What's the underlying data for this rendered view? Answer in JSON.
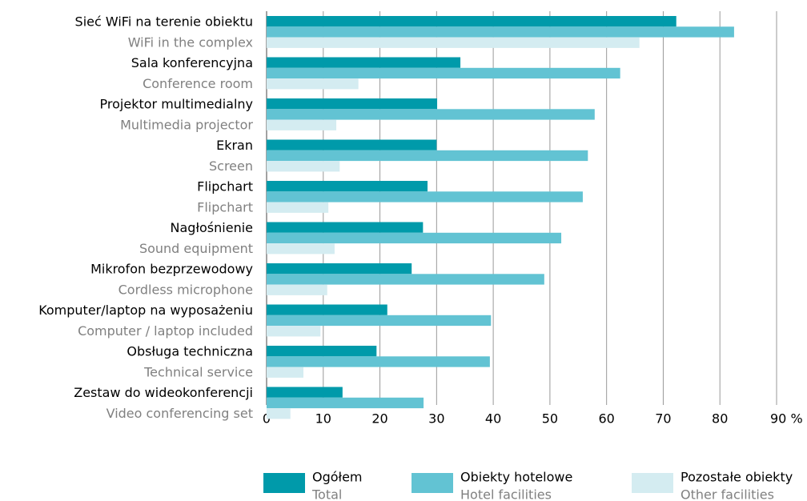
{
  "chart_data": {
    "type": "barh",
    "categories": [
      "Sieć WiFi na terenie obiektu",
      "Sala konferencyjna",
      "Projektor multimedialny",
      "Ekran",
      "Flipchart",
      "Nagłośnienie",
      "Mikrofon bezprzewodowy",
      "Komputer/laptop na wyposażeniu",
      "Obsługa techniczna",
      "Zestaw do wideokonferencji"
    ],
    "categories_en": [
      "WiFi  in the complex",
      "Conference room",
      "Multimedia projector",
      "Screen",
      "Flipchart",
      "Sound equipment",
      "Cordless microphone",
      "Computer / laptop included",
      "Technical service",
      "Video conferencing set"
    ],
    "series": [
      {
        "name": "Ogółem",
        "name_en": "Total",
        "color": "#009aaa",
        "values": [
          72.3,
          34.2,
          30.1,
          30.0,
          28.4,
          27.6,
          25.6,
          21.3,
          19.4,
          13.4
        ]
      },
      {
        "name": "Obiekty hotelowe",
        "name_en": "Hotel facilities",
        "color": "#62c3d3",
        "values": [
          82.5,
          62.4,
          57.9,
          56.7,
          55.8,
          52.0,
          49.0,
          39.6,
          39.4,
          27.7
        ]
      },
      {
        "name": "Pozostałe obiekty",
        "name_en": "Other facilities",
        "color": "#d4ecf1",
        "values": [
          65.8,
          16.2,
          12.3,
          12.9,
          10.9,
          12.0,
          10.7,
          9.5,
          6.5,
          4.2
        ]
      }
    ],
    "xlim": [
      0,
      90
    ],
    "xticks": [
      0,
      10,
      20,
      30,
      40,
      50,
      60,
      70,
      80,
      {
        "value": 90,
        "label": "90 %"
      }
    ],
    "grid": true
  }
}
